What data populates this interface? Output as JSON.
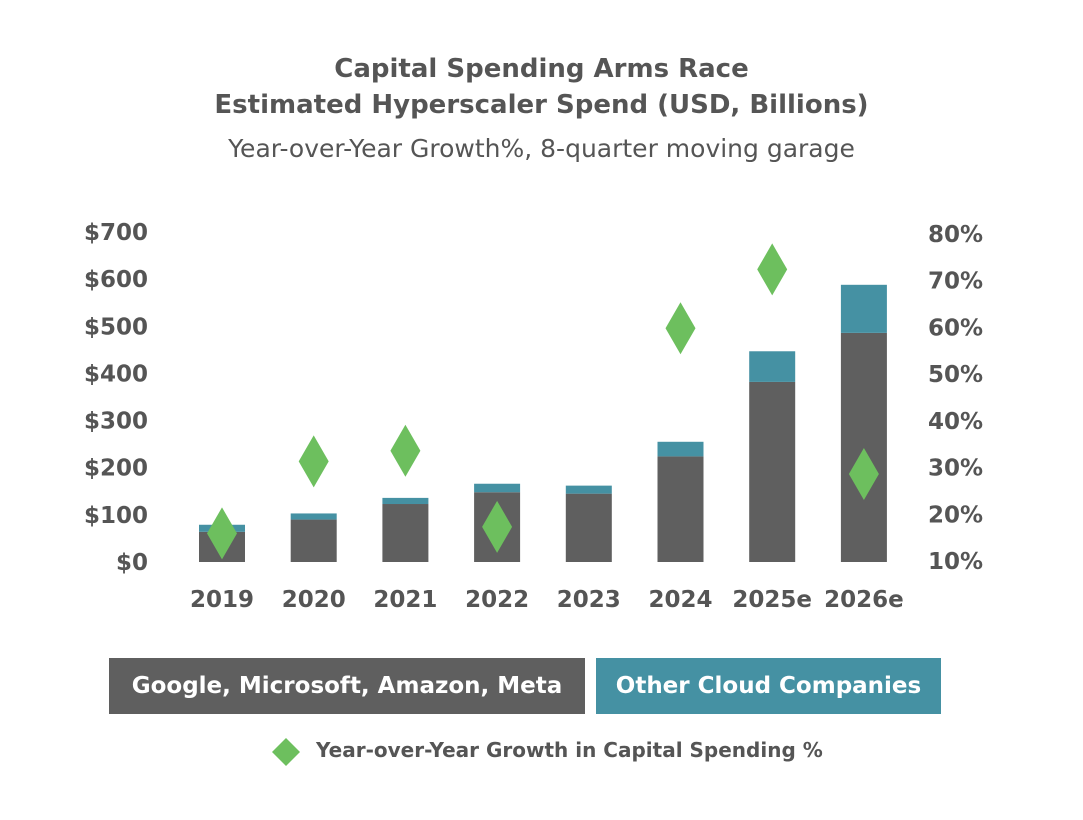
{
  "chart_data": {
    "type": "bar",
    "title": "Capital Spending Arms Race",
    "title2": "Estimated Hyperscaler Spend (USD, Billions)",
    "subtitle": "Year-over-Year Growth%, 8-quarter moving garage",
    "categories": [
      "2019",
      "2020",
      "2021",
      "2022",
      "2023",
      "2024",
      "2025e",
      "2026e"
    ],
    "series": [
      {
        "name": "Google, Microsoft, Amazon, Meta",
        "type": "stacked-bar",
        "axis": "left",
        "color": "#5f5f5f",
        "values": [
          64,
          90,
          123,
          148,
          145,
          224,
          382,
          486
        ]
      },
      {
        "name": "Other Cloud Companies",
        "type": "stacked-bar",
        "axis": "left",
        "color": "#4591a3",
        "values": [
          15,
          13,
          13,
          18,
          17,
          31,
          65,
          102
        ]
      },
      {
        "name": "Year-over-Year Growth in Capital Spending %",
        "type": "scatter",
        "marker": "diamond",
        "axis": "right",
        "color": "#6dbf5e",
        "values": [
          15.7,
          31.1,
          33.4,
          17.1,
          null,
          59.6,
          72.2,
          28.4
        ]
      }
    ],
    "left_axis": {
      "ylim": [
        0,
        700
      ],
      "ticks": [
        0,
        100,
        200,
        300,
        400,
        500,
        600,
        700
      ],
      "tick_labels": [
        "$0",
        "$100",
        "$200",
        "$300",
        "$400",
        "$500",
        "$600",
        "$700"
      ]
    },
    "right_axis": {
      "ylim": [
        10,
        80
      ],
      "ticks": [
        10,
        20,
        30,
        40,
        50,
        60,
        70,
        80
      ],
      "tick_labels": [
        "10%",
        "20%",
        "30%",
        "40%",
        "50%",
        "60%",
        "70%",
        "80%"
      ]
    },
    "grid": false,
    "legend_placement": "bottom"
  }
}
